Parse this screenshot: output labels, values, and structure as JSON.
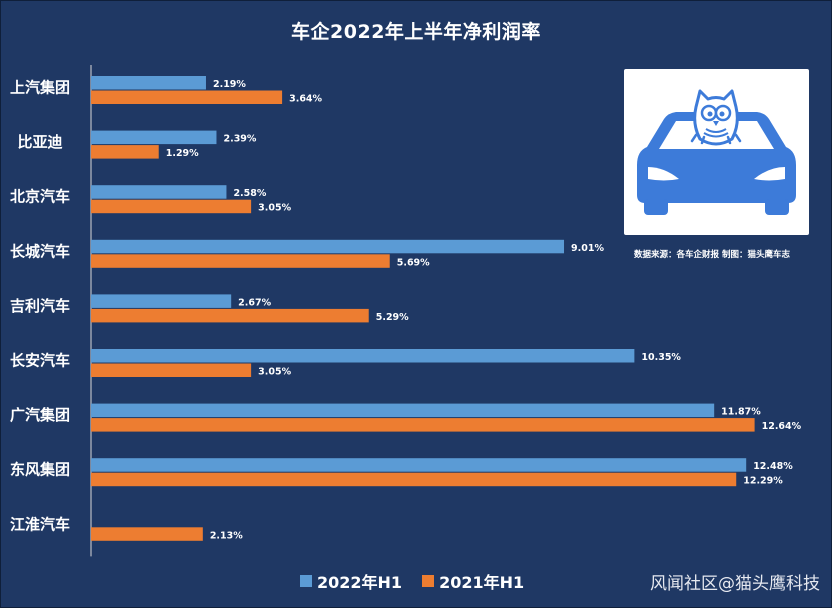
{
  "title": "车企2022年上半年净利润率",
  "source_note": "数据来源：各车企财报  制图：猫头鹰车志",
  "watermark": "风闻社区@猫头鹰科技",
  "logo_icon": "owl-on-car-logo",
  "colors": {
    "background": "#1f3864",
    "series_2022": "#5b9bd5",
    "series_2021": "#ed7d31",
    "logo_blue": "#3d7bd9"
  },
  "chart_data": {
    "type": "bar",
    "orientation": "horizontal",
    "title": "车企2022年上半年净利润率",
    "categories": [
      "上汽集团",
      "比亚迪",
      "北京汽车",
      "长城汽车",
      "吉利汽车",
      "长安汽车",
      "广汽集团",
      "东风集团",
      "江淮汽车"
    ],
    "series": [
      {
        "name": "2022年H1",
        "values": [
          2.19,
          2.39,
          2.58,
          9.01,
          2.67,
          10.35,
          11.87,
          12.48,
          null
        ],
        "labels": [
          "2.19%",
          "2.39%",
          "2.58%",
          "9.01%",
          "2.67%",
          "10.35%",
          "11.87%",
          "12.48%",
          ""
        ]
      },
      {
        "name": "2021年H1",
        "values": [
          3.64,
          1.29,
          3.05,
          5.69,
          5.29,
          3.05,
          12.64,
          12.29,
          2.13
        ],
        "labels": [
          "3.64%",
          "1.29%",
          "3.05%",
          "5.69%",
          "5.29%",
          "3.05%",
          "12.64%",
          "12.29%",
          "2.13%"
        ]
      }
    ],
    "xlim": [
      0,
      14
    ],
    "unit": "%",
    "grid": false,
    "legend_position": "bottom"
  }
}
